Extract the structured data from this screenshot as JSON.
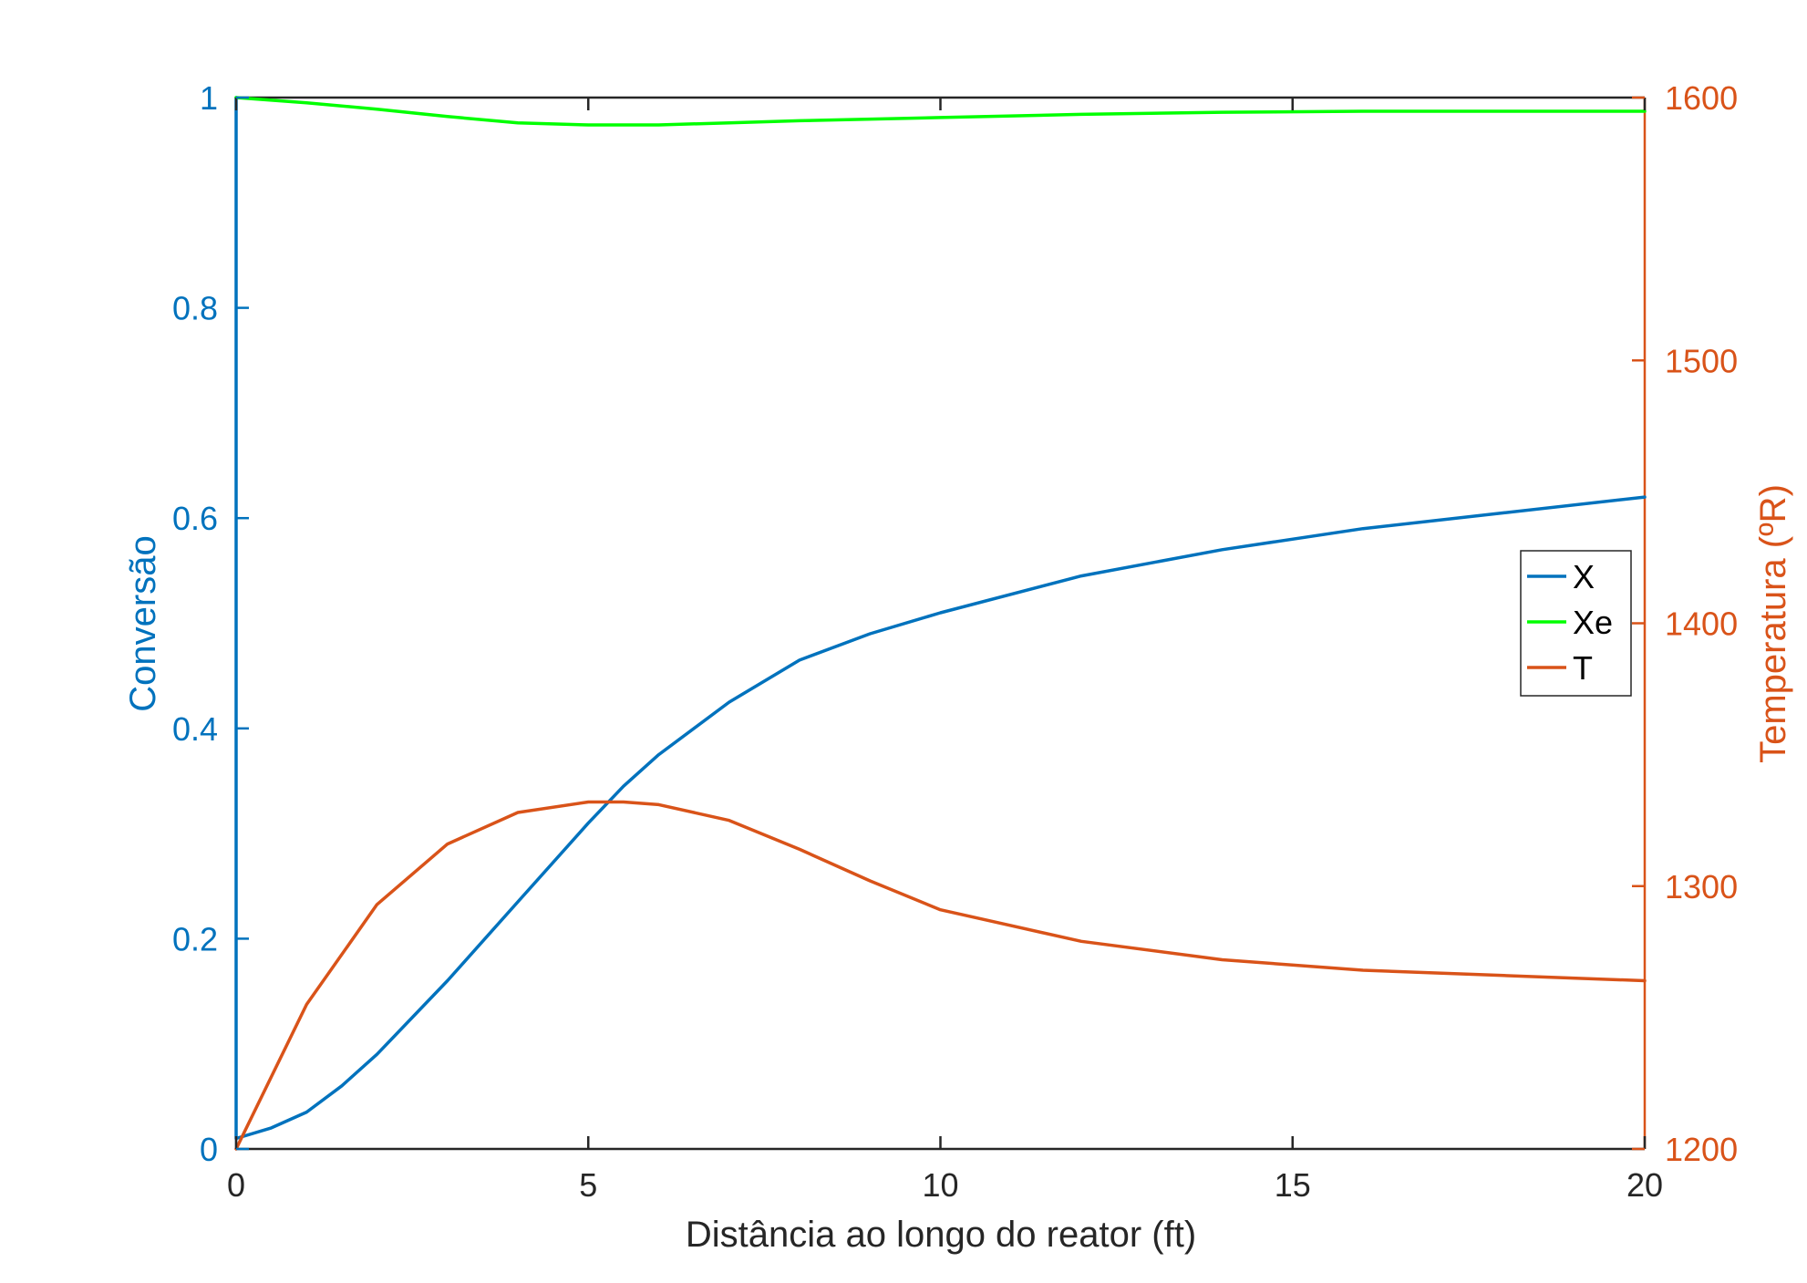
{
  "chart_data": {
    "type": "line",
    "xlabel": "Distância ao longo do reator (ft)",
    "ylabel_left": "Conversão",
    "ylabel_right": "Temperatura (ºR)",
    "xlim": [
      0,
      20
    ],
    "ylim_left": [
      0,
      1
    ],
    "ylim_right": [
      1200,
      1600
    ],
    "xticks": [
      "0",
      "5",
      "10",
      "15",
      "20"
    ],
    "yticks_left": [
      "0",
      "0.2",
      "0.4",
      "0.6",
      "0.8",
      "1"
    ],
    "yticks_right": [
      "1200",
      "1300",
      "1400",
      "1500",
      "1600"
    ],
    "grid": false,
    "legend": "right",
    "colors": {
      "X": "#0072BD",
      "Xe": "#00FF00",
      "T": "#D95319",
      "axis": "#262626"
    },
    "series": [
      {
        "name": "X",
        "axis": "left",
        "x": [
          0,
          0,
          0.5,
          1,
          1.5,
          2,
          3,
          4,
          5,
          5.5,
          6,
          7,
          8,
          9,
          10,
          12,
          14,
          16,
          18,
          20
        ],
        "y": [
          1.0,
          0.01,
          0.02,
          0.035,
          0.06,
          0.09,
          0.16,
          0.235,
          0.31,
          0.345,
          0.375,
          0.425,
          0.465,
          0.49,
          0.51,
          0.545,
          0.57,
          0.59,
          0.605,
          0.62
        ]
      },
      {
        "name": "Xe",
        "axis": "left",
        "x": [
          0,
          1,
          2,
          3,
          4,
          5,
          6,
          7,
          8,
          10,
          12,
          14,
          16,
          18,
          20
        ],
        "y": [
          1.0,
          0.995,
          0.989,
          0.982,
          0.976,
          0.974,
          0.974,
          0.976,
          0.978,
          0.981,
          0.984,
          0.986,
          0.987,
          0.987,
          0.987
        ]
      },
      {
        "name": "T",
        "axis": "right",
        "x": [
          0,
          1,
          2,
          3,
          4,
          5,
          5.5,
          6,
          7,
          8,
          9,
          10,
          12,
          14,
          16,
          18,
          20
        ],
        "y": [
          1200,
          1255,
          1293,
          1316,
          1328,
          1332,
          1332,
          1331,
          1325,
          1314,
          1302,
          1291,
          1279,
          1272,
          1268,
          1266,
          1264
        ]
      }
    ]
  }
}
